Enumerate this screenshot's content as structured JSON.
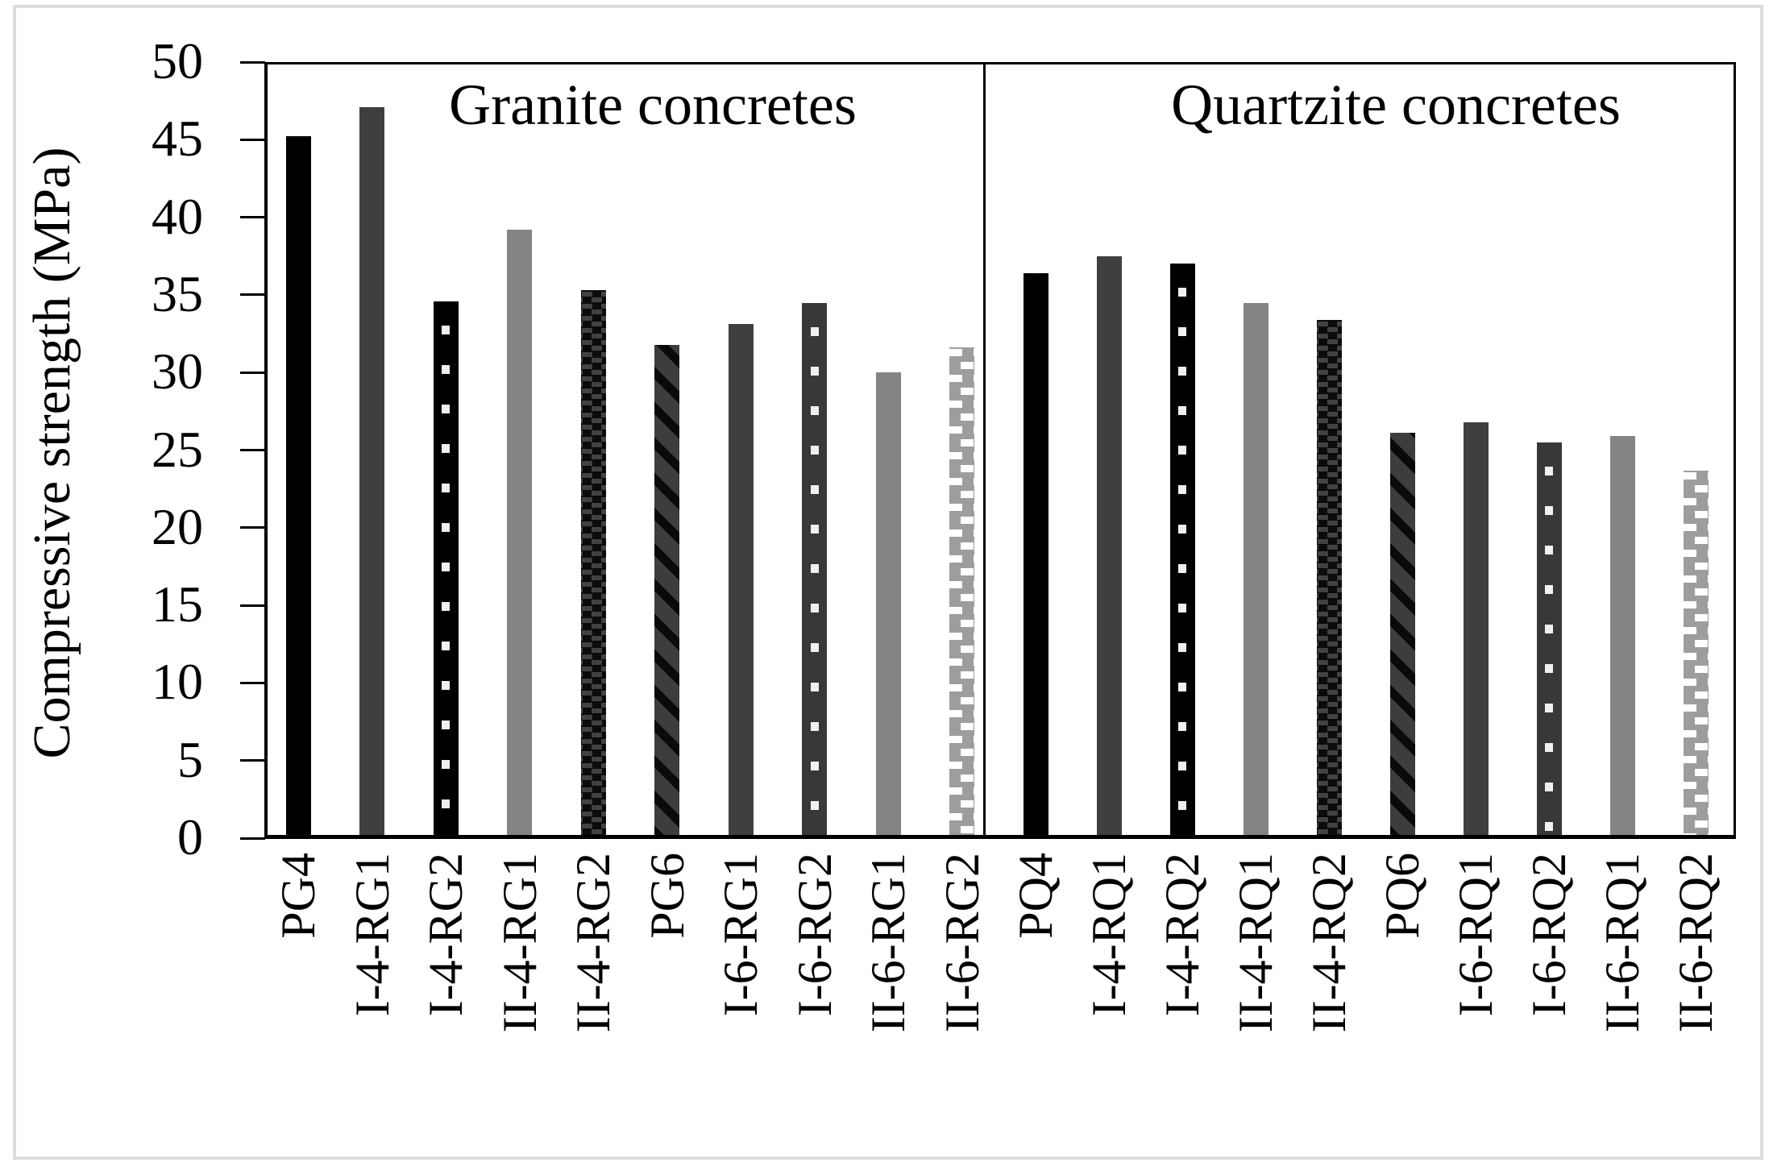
{
  "page": {
    "background": "#ffffff",
    "frame_color": "#dcdcdc",
    "bar_colors": {
      "black": "#000000",
      "dark_gray": "#3f3f3f",
      "gray": "#848484",
      "light_checker_gray": "#9d9d9d",
      "dot_white": "#f0f0f0"
    }
  },
  "chart_data": {
    "type": "bar",
    "title": "",
    "xlabel": "",
    "ylabel": "Compressive strength (MPa)",
    "ylim": [
      0,
      50
    ],
    "ytick_step": 5,
    "yticks": [
      50,
      45,
      40,
      35,
      30,
      25,
      20,
      15,
      10,
      5,
      0
    ],
    "grid": false,
    "legend": "none",
    "groups": [
      {
        "title": "Granite concretes",
        "bars": [
          {
            "label": "PG4",
            "value": 45.2,
            "pattern": "solid-black"
          },
          {
            "label": "I-4-RG1",
            "value": 47.1,
            "pattern": "solid-darkgray"
          },
          {
            "label": "I-4-RG2",
            "value": 34.6,
            "pattern": "dotted-black"
          },
          {
            "label": "II-4-RG1",
            "value": 39.2,
            "pattern": "solid-gray"
          },
          {
            "label": "II-4-RG2",
            "value": 35.3,
            "pattern": "dashed-checker-dark"
          },
          {
            "label": "PG6",
            "value": 31.8,
            "pattern": "diagonal-stripe-dark"
          },
          {
            "label": "I-6-RG1",
            "value": 33.1,
            "pattern": "solid-darkgray"
          },
          {
            "label": "I-6-RG2",
            "value": 34.5,
            "pattern": "dotted-darkgray"
          },
          {
            "label": "II-6-RG1",
            "value": 30.0,
            "pattern": "solid-gray"
          },
          {
            "label": "II-6-RG2",
            "value": 31.6,
            "pattern": "checker-light"
          }
        ]
      },
      {
        "title": "Quartzite concretes",
        "bars": [
          {
            "label": "PQ4",
            "value": 36.4,
            "pattern": "solid-black"
          },
          {
            "label": "I-4-RQ1",
            "value": 37.5,
            "pattern": "solid-darkgray"
          },
          {
            "label": "I-4-RQ2",
            "value": 37.0,
            "pattern": "dotted-black"
          },
          {
            "label": "II-4-RQ1",
            "value": 34.5,
            "pattern": "solid-gray"
          },
          {
            "label": "II-4-RQ2",
            "value": 33.4,
            "pattern": "dashed-checker-dark"
          },
          {
            "label": "PQ6",
            "value": 26.1,
            "pattern": "diagonal-stripe-dark"
          },
          {
            "label": "I-6-RQ1",
            "value": 26.8,
            "pattern": "solid-darkgray"
          },
          {
            "label": "I-6-RQ2",
            "value": 25.5,
            "pattern": "dotted-darkgray"
          },
          {
            "label": "II-6-RQ1",
            "value": 25.9,
            "pattern": "solid-gray"
          },
          {
            "label": "II-6-RQ2",
            "value": 23.7,
            "pattern": "checker-light"
          }
        ]
      }
    ]
  }
}
